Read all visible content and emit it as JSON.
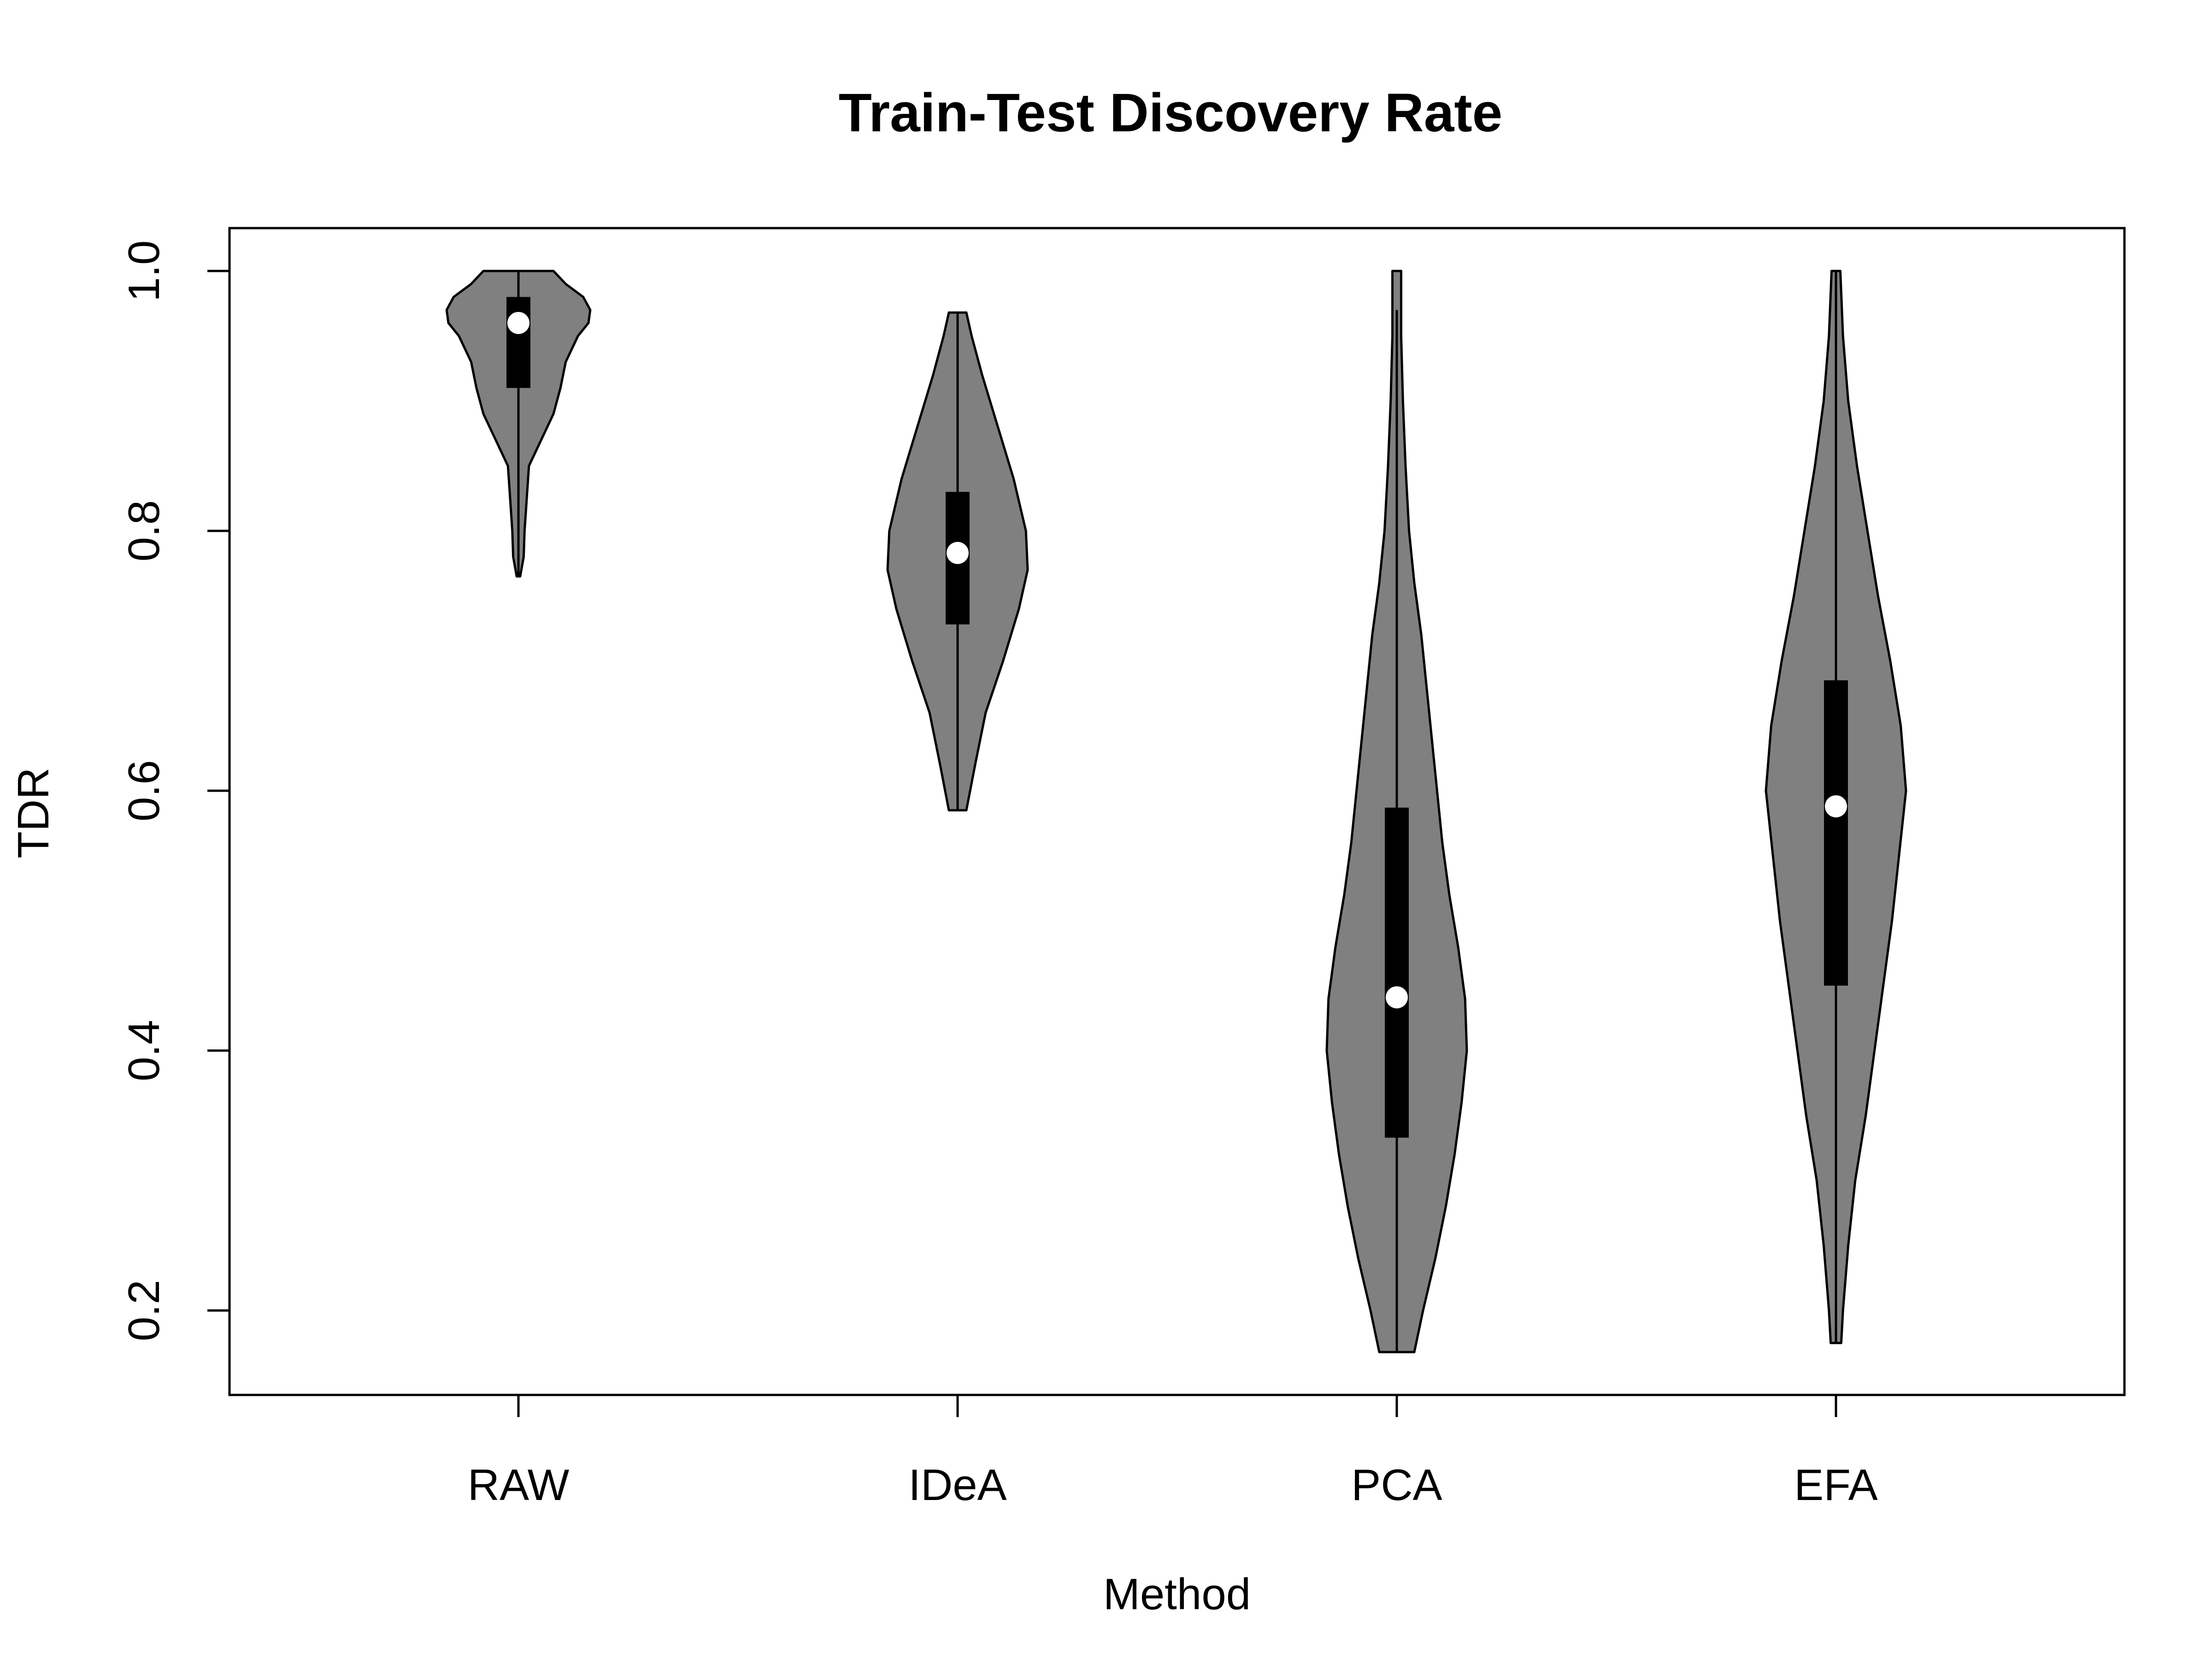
{
  "chart_data": {
    "type": "violin",
    "title": "Train-Test Discovery Rate",
    "xlabel": "Method",
    "ylabel": "TDR",
    "ylim": [
      0.135,
      1.033
    ],
    "yticks": [
      "0.2",
      "0.4",
      "0.6",
      "0.8",
      "1.0"
    ],
    "ytick_values": [
      0.2,
      0.4,
      0.6,
      0.8,
      1.0
    ],
    "categories": [
      "RAW",
      "IDeA",
      "PCA",
      "EFA"
    ],
    "fill_color": "#808080",
    "box_color": "#000000",
    "median_color": "#ffffff",
    "grid": false,
    "series": [
      {
        "whisker": [
          0.765,
          1.0
        ],
        "q1": 0.91,
        "median": 0.96,
        "q3": 0.98,
        "density": [
          [
            0.765,
            0.01
          ],
          [
            0.78,
            0.03
          ],
          [
            0.8,
            0.035
          ],
          [
            0.82,
            0.045
          ],
          [
            0.85,
            0.06
          ],
          [
            0.87,
            0.13
          ],
          [
            0.89,
            0.2
          ],
          [
            0.91,
            0.24
          ],
          [
            0.93,
            0.27
          ],
          [
            0.95,
            0.34
          ],
          [
            0.96,
            0.4
          ],
          [
            0.97,
            0.41
          ],
          [
            0.98,
            0.37
          ],
          [
            0.99,
            0.27
          ],
          [
            1.0,
            0.2
          ]
        ]
      },
      {
        "whisker": [
          0.585,
          0.968
        ],
        "q1": 0.728,
        "median": 0.783,
        "q3": 0.83,
        "density": [
          [
            0.585,
            0.05
          ],
          [
            0.62,
            0.1
          ],
          [
            0.66,
            0.16
          ],
          [
            0.7,
            0.26
          ],
          [
            0.74,
            0.35
          ],
          [
            0.77,
            0.4
          ],
          [
            0.8,
            0.39
          ],
          [
            0.84,
            0.32
          ],
          [
            0.88,
            0.23
          ],
          [
            0.92,
            0.14
          ],
          [
            0.95,
            0.08
          ],
          [
            0.968,
            0.05
          ]
        ]
      },
      {
        "whisker": [
          0.168,
          0.97
        ],
        "q1": 0.333,
        "median": 0.441,
        "q3": 0.587,
        "density": [
          [
            0.168,
            0.1
          ],
          [
            0.2,
            0.15
          ],
          [
            0.24,
            0.22
          ],
          [
            0.28,
            0.28
          ],
          [
            0.32,
            0.33
          ],
          [
            0.36,
            0.37
          ],
          [
            0.4,
            0.4
          ],
          [
            0.44,
            0.39
          ],
          [
            0.48,
            0.35
          ],
          [
            0.52,
            0.3
          ],
          [
            0.56,
            0.26
          ],
          [
            0.6,
            0.23
          ],
          [
            0.64,
            0.2
          ],
          [
            0.68,
            0.17
          ],
          [
            0.72,
            0.14
          ],
          [
            0.76,
            0.1
          ],
          [
            0.8,
            0.07
          ],
          [
            0.85,
            0.05
          ],
          [
            0.9,
            0.035
          ],
          [
            0.95,
            0.025
          ],
          [
            1.0,
            0.025
          ]
        ]
      },
      {
        "whisker": [
          0.175,
          1.0
        ],
        "q1": 0.45,
        "median": 0.588,
        "q3": 0.685,
        "density": [
          [
            0.175,
            0.03
          ],
          [
            0.2,
            0.04
          ],
          [
            0.25,
            0.07
          ],
          [
            0.3,
            0.11
          ],
          [
            0.35,
            0.17
          ],
          [
            0.4,
            0.22
          ],
          [
            0.45,
            0.27
          ],
          [
            0.5,
            0.32
          ],
          [
            0.55,
            0.36
          ],
          [
            0.6,
            0.4
          ],
          [
            0.65,
            0.37
          ],
          [
            0.7,
            0.31
          ],
          [
            0.75,
            0.24
          ],
          [
            0.8,
            0.18
          ],
          [
            0.85,
            0.12
          ],
          [
            0.9,
            0.07
          ],
          [
            0.95,
            0.04
          ],
          [
            1.0,
            0.025
          ]
        ]
      }
    ]
  }
}
